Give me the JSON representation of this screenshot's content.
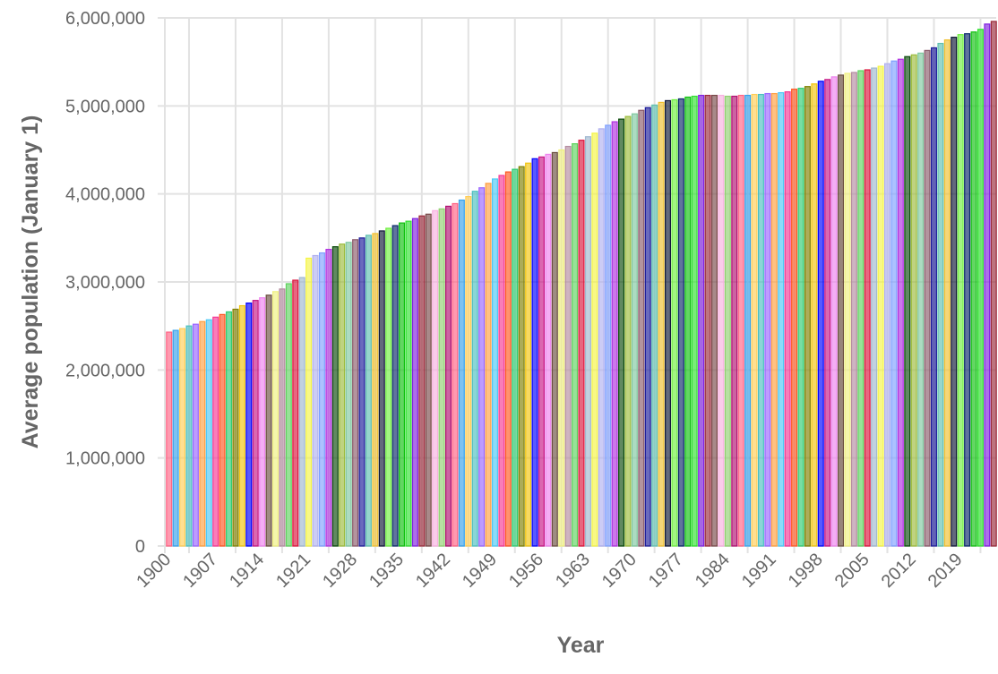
{
  "chart_data": {
    "type": "bar",
    "title": "",
    "xlabel": "Year",
    "ylabel": "Average population (January 1)",
    "ylim": [
      0,
      6000000
    ],
    "yticks": [
      0,
      1000000,
      2000000,
      3000000,
      4000000,
      5000000,
      6000000
    ],
    "ytick_labels": [
      "0",
      "1,000,000",
      "2,000,000",
      "3,000,000",
      "4,000,000",
      "5,000,000",
      "6,000,000"
    ],
    "x_start": 1900,
    "x_end": 2024,
    "xtick_step": 7,
    "xtick_labels": [
      "1900",
      "1907",
      "1914",
      "1921",
      "1928",
      "1935",
      "1942",
      "1949",
      "1956",
      "1963",
      "1970",
      "1977",
      "1984",
      "1991",
      "1998",
      "2005",
      "2012",
      "2019"
    ],
    "grid": true,
    "legend": "none",
    "values_millions": [
      2.43,
      2.45,
      2.47,
      2.5,
      2.52,
      2.55,
      2.57,
      2.6,
      2.63,
      2.66,
      2.69,
      2.73,
      2.76,
      2.79,
      2.82,
      2.85,
      2.89,
      2.92,
      2.98,
      3.02,
      3.05,
      3.27,
      3.3,
      3.33,
      3.37,
      3.4,
      3.43,
      3.45,
      3.48,
      3.5,
      3.53,
      3.55,
      3.58,
      3.61,
      3.64,
      3.67,
      3.69,
      3.72,
      3.75,
      3.77,
      3.81,
      3.83,
      3.86,
      3.89,
      3.93,
      3.97,
      4.03,
      4.07,
      4.12,
      4.17,
      4.21,
      4.25,
      4.28,
      4.31,
      4.35,
      4.4,
      4.42,
      4.45,
      4.47,
      4.5,
      4.54,
      4.57,
      4.61,
      4.65,
      4.69,
      4.74,
      4.78,
      4.82,
      4.85,
      4.88,
      4.91,
      4.95,
      4.98,
      5.01,
      5.04,
      5.06,
      5.07,
      5.08,
      5.1,
      5.11,
      5.12,
      5.12,
      5.12,
      5.12,
      5.11,
      5.11,
      5.12,
      5.12,
      5.13,
      5.13,
      5.14,
      5.14,
      5.15,
      5.16,
      5.19,
      5.2,
      5.22,
      5.25,
      5.28,
      5.3,
      5.33,
      5.35,
      5.37,
      5.38,
      5.4,
      5.41,
      5.43,
      5.45,
      5.48,
      5.51,
      5.53,
      5.56,
      5.58,
      5.6,
      5.63,
      5.66,
      5.71,
      5.75,
      5.78,
      5.81,
      5.82,
      5.84,
      5.87,
      5.93,
      5.96
    ],
    "palette": [
      "#ff6384",
      "#36a2eb",
      "#ffce56",
      "#4bc0c0",
      "#9966ff",
      "#ff9f40",
      "#4dc9f6",
      "#f53794",
      "#ff5722",
      "#2ecc71",
      "#808000",
      "#f1c40f",
      "#0000ff",
      "#c71585",
      "#ee82ee",
      "#6b4f3f",
      "#f0f080",
      "#b48ca0",
      "#5fd35f",
      "#dc143c",
      "#a0b8d0",
      "#f5f545",
      "#b0b0f0",
      "#7fa0ff",
      "#b030e0",
      "#0a4a0a",
      "#9cbc3c",
      "#80c8a0",
      "#8a5a6a",
      "#1a1a9a",
      "#60c0b0",
      "#f0c030",
      "#101838",
      "#70f040",
      "#0a2a6a",
      "#10c010",
      "#30e030",
      "#8020e0",
      "#9a2a3a",
      "#7a4a4a",
      "#f8b0e0",
      "#90d070",
      "#b01070"
    ]
  }
}
